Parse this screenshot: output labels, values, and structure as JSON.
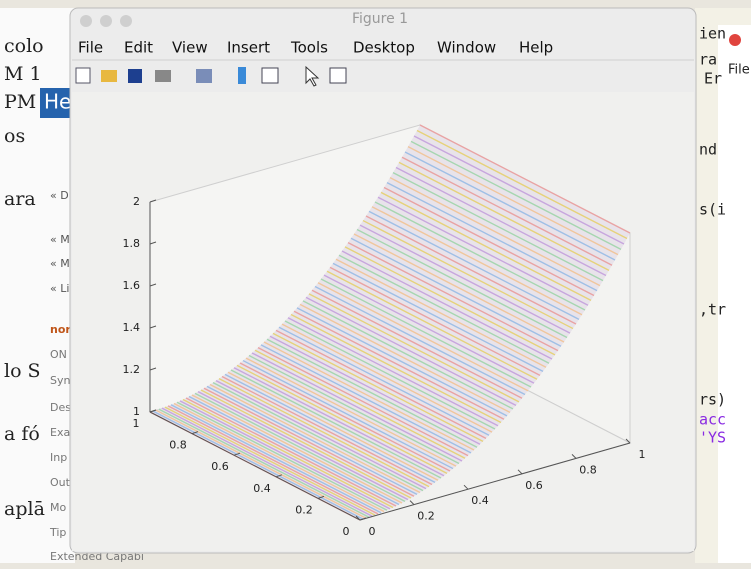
{
  "background": {
    "left_texts": [
      "colo",
      "M 1",
      "PM",
      "os",
      "ara",
      "lo S",
      "a fó",
      "aplā"
    ],
    "help_bar": "He",
    "doc_links": [
      "« D",
      "« M",
      "« M",
      "« Li",
      "nor",
      "ON",
      "Syn",
      "Des",
      "Exa",
      "Inp",
      "Out",
      "Mo",
      "Tip",
      "Extended Capabi"
    ],
    "right_texts": [
      "ien",
      "ra",
      "Er",
      "nd",
      "s(i",
      ",tr",
      "rs)",
      "acc",
      "'YS"
    ],
    "right_window_menu": "File"
  },
  "window": {
    "title": "Figure 1",
    "menu": [
      "File",
      "Edit",
      "View",
      "Insert",
      "Tools",
      "Desktop",
      "Window",
      "Help"
    ]
  },
  "plot": {
    "zticks": [
      1,
      1.2,
      1.4,
      1.6,
      1.8,
      2
    ],
    "yticks": [
      0,
      0.2,
      0.4,
      0.6,
      0.8,
      1
    ],
    "xticks": [
      0,
      0.2,
      0.4,
      0.6,
      0.8,
      1
    ]
  }
}
